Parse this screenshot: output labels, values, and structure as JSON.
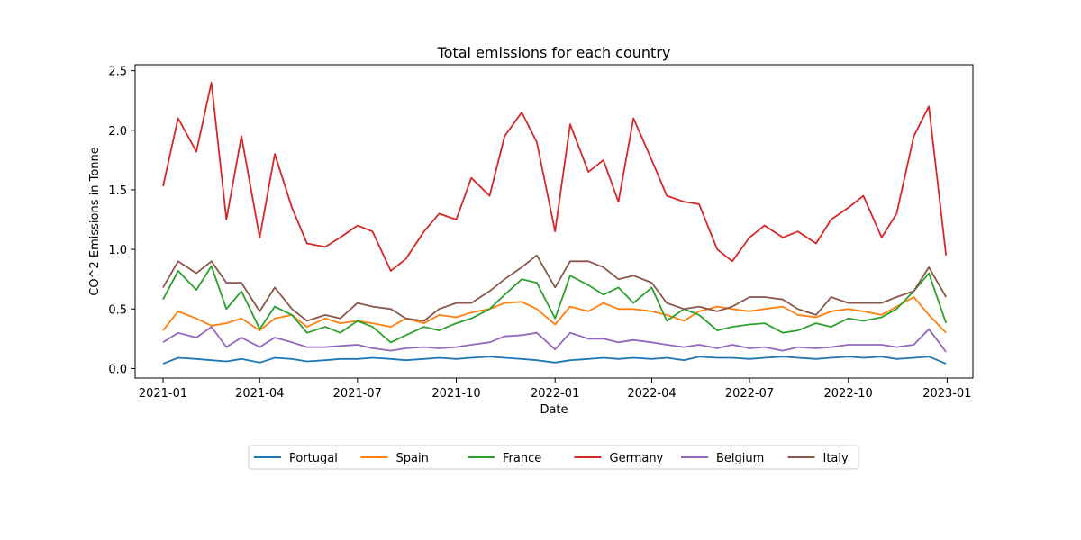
{
  "chart_data": {
    "type": "line",
    "title": "Total emissions for each country",
    "xlabel": "Date",
    "ylabel": "CO^2 Emissions in Tonne",
    "x_ticks": [
      "2021-01",
      "2021-04",
      "2021-07",
      "2021-10",
      "2022-01",
      "2022-04",
      "2022-07",
      "2022-10",
      "2023-01"
    ],
    "y_ticks": [
      "0.0",
      "0.5",
      "1.0",
      "1.5",
      "2.0",
      "2.5"
    ],
    "xlim": [
      "2020-12-06",
      "2023-01-25"
    ],
    "ylim": [
      -0.08,
      2.55
    ],
    "grid": false,
    "legend_position": "bottom-center",
    "x": [
      "2021-01-01",
      "2021-01-15",
      "2021-02-01",
      "2021-02-15",
      "2021-03-01",
      "2021-03-15",
      "2021-04-01",
      "2021-04-15",
      "2021-05-01",
      "2021-05-15",
      "2021-06-01",
      "2021-06-15",
      "2021-07-01",
      "2021-07-15",
      "2021-08-01",
      "2021-08-15",
      "2021-09-01",
      "2021-09-15",
      "2021-10-01",
      "2021-10-15",
      "2021-11-01",
      "2021-11-15",
      "2021-12-01",
      "2021-12-15",
      "2022-01-01",
      "2022-01-15",
      "2022-02-01",
      "2022-02-15",
      "2022-03-01",
      "2022-03-15",
      "2022-04-01",
      "2022-04-15",
      "2022-05-01",
      "2022-05-15",
      "2022-06-01",
      "2022-06-15",
      "2022-07-01",
      "2022-07-15",
      "2022-08-01",
      "2022-08-15",
      "2022-09-01",
      "2022-09-15",
      "2022-10-01",
      "2022-10-15",
      "2022-11-01",
      "2022-11-15",
      "2022-12-01",
      "2022-12-15",
      "2022-12-31"
    ],
    "series": [
      {
        "name": "Portugal",
        "color": "#1f77b4",
        "values": [
          0.04,
          0.09,
          0.08,
          0.07,
          0.06,
          0.08,
          0.05,
          0.09,
          0.08,
          0.06,
          0.07,
          0.08,
          0.08,
          0.09,
          0.08,
          0.07,
          0.08,
          0.09,
          0.08,
          0.09,
          0.1,
          0.09,
          0.08,
          0.07,
          0.05,
          0.07,
          0.08,
          0.09,
          0.08,
          0.09,
          0.08,
          0.09,
          0.07,
          0.1,
          0.09,
          0.09,
          0.08,
          0.09,
          0.1,
          0.09,
          0.08,
          0.09,
          0.1,
          0.09,
          0.1,
          0.08,
          0.09,
          0.1,
          0.04
        ]
      },
      {
        "name": "Spain",
        "color": "#ff7f0e",
        "values": [
          0.32,
          0.48,
          0.42,
          0.36,
          0.38,
          0.42,
          0.32,
          0.42,
          0.45,
          0.35,
          0.42,
          0.38,
          0.4,
          0.38,
          0.35,
          0.42,
          0.38,
          0.45,
          0.43,
          0.47,
          0.5,
          0.55,
          0.56,
          0.5,
          0.37,
          0.52,
          0.48,
          0.55,
          0.5,
          0.5,
          0.48,
          0.45,
          0.4,
          0.48,
          0.52,
          0.5,
          0.48,
          0.5,
          0.52,
          0.45,
          0.43,
          0.48,
          0.5,
          0.48,
          0.45,
          0.52,
          0.6,
          0.45,
          0.3
        ]
      },
      {
        "name": "France",
        "color": "#2ca02c",
        "values": [
          0.58,
          0.82,
          0.66,
          0.86,
          0.5,
          0.65,
          0.33,
          0.52,
          0.45,
          0.3,
          0.35,
          0.3,
          0.4,
          0.35,
          0.22,
          0.28,
          0.35,
          0.32,
          0.38,
          0.42,
          0.5,
          0.62,
          0.75,
          0.72,
          0.42,
          0.78,
          0.7,
          0.62,
          0.68,
          0.55,
          0.68,
          0.4,
          0.5,
          0.45,
          0.32,
          0.35,
          0.37,
          0.38,
          0.3,
          0.32,
          0.38,
          0.35,
          0.42,
          0.4,
          0.43,
          0.5,
          0.65,
          0.8,
          0.38
        ]
      },
      {
        "name": "Germany",
        "color": "#d62728",
        "values": [
          1.53,
          2.1,
          1.82,
          2.4,
          1.25,
          1.95,
          1.1,
          1.8,
          1.35,
          1.05,
          1.02,
          1.1,
          1.2,
          1.15,
          0.82,
          0.92,
          1.15,
          1.3,
          1.25,
          1.6,
          1.45,
          1.95,
          2.15,
          1.9,
          1.15,
          2.05,
          1.65,
          1.75,
          1.4,
          2.1,
          1.75,
          1.45,
          1.4,
          1.38,
          1.0,
          0.9,
          1.1,
          1.2,
          1.1,
          1.15,
          1.05,
          1.25,
          1.35,
          1.45,
          1.1,
          1.3,
          1.95,
          2.2,
          0.95
        ]
      },
      {
        "name": "Belgium",
        "color": "#9467bd",
        "values": [
          0.22,
          0.3,
          0.26,
          0.35,
          0.18,
          0.26,
          0.18,
          0.26,
          0.22,
          0.18,
          0.18,
          0.19,
          0.2,
          0.17,
          0.15,
          0.17,
          0.18,
          0.17,
          0.18,
          0.2,
          0.22,
          0.27,
          0.28,
          0.3,
          0.16,
          0.3,
          0.25,
          0.25,
          0.22,
          0.24,
          0.22,
          0.2,
          0.18,
          0.2,
          0.17,
          0.2,
          0.17,
          0.18,
          0.15,
          0.18,
          0.17,
          0.18,
          0.2,
          0.2,
          0.2,
          0.18,
          0.2,
          0.33,
          0.14
        ]
      },
      {
        "name": "Italy",
        "color": "#8c564b",
        "values": [
          0.68,
          0.9,
          0.8,
          0.9,
          0.72,
          0.72,
          0.48,
          0.68,
          0.5,
          0.4,
          0.45,
          0.42,
          0.55,
          0.52,
          0.5,
          0.42,
          0.4,
          0.5,
          0.55,
          0.55,
          0.65,
          0.75,
          0.85,
          0.95,
          0.68,
          0.9,
          0.9,
          0.85,
          0.75,
          0.78,
          0.72,
          0.55,
          0.5,
          0.52,
          0.48,
          0.52,
          0.6,
          0.6,
          0.58,
          0.5,
          0.45,
          0.6,
          0.55,
          0.55,
          0.55,
          0.6,
          0.65,
          0.85,
          0.6
        ]
      }
    ]
  }
}
